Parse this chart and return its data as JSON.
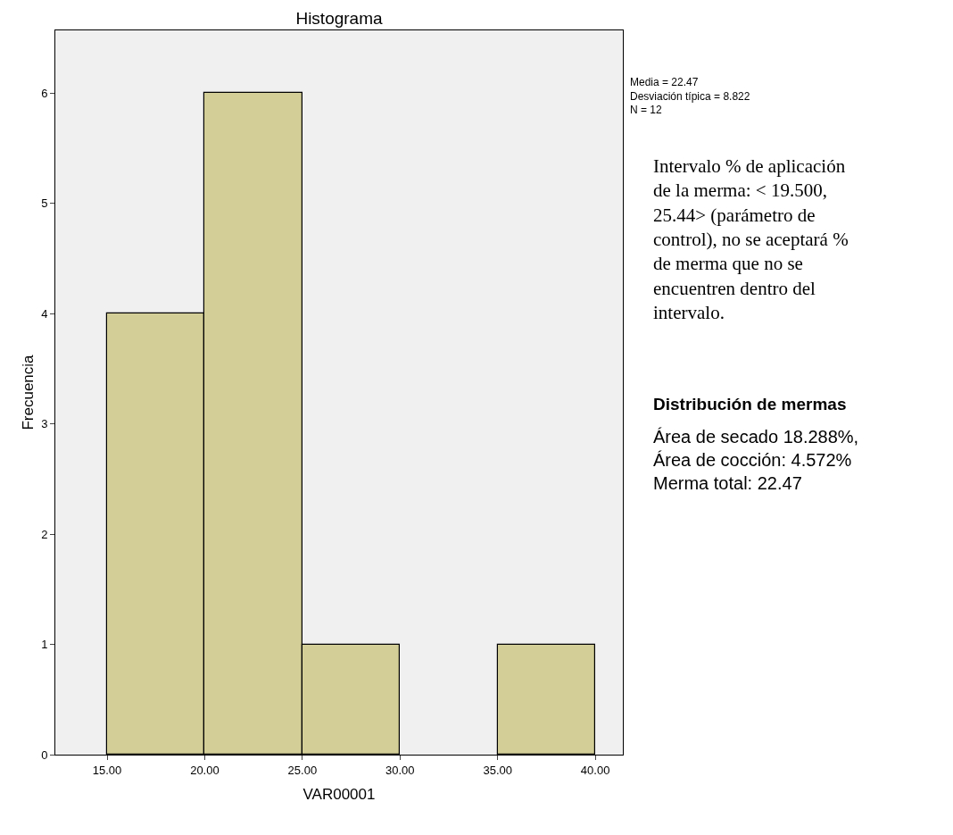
{
  "chart_data": {
    "type": "histogram",
    "title": "Histograma",
    "xlabel": "VAR00001",
    "ylabel": "Frecuencia",
    "bins": [
      15,
      20,
      25,
      30,
      35,
      40
    ],
    "values": [
      4,
      6,
      1,
      0,
      1
    ],
    "color": "#d3ce97",
    "xlim": [
      12.35,
      41.41
    ],
    "ylim": [
      0,
      6.57
    ],
    "xticks": [
      {
        "value": 15,
        "label": "15.00"
      },
      {
        "value": 20,
        "label": "20.00"
      },
      {
        "value": 25,
        "label": "25.00"
      },
      {
        "value": 30,
        "label": "30.00"
      },
      {
        "value": 35,
        "label": "35.00"
      },
      {
        "value": 40,
        "label": "40.00"
      }
    ],
    "yticks": [
      0,
      1,
      2,
      3,
      4,
      5,
      6
    ],
    "grid": false,
    "annotations": [
      "Media = 22.47\nDesviación típica = 8.822\nN = 12",
      "Intervalo % de aplicación\nde la merma: < 19.500,\n25.44> (parámetro de\ncontrol), no se aceptará %\nde merma que no se\nencuentren dentro del\nintervalo.",
      "Distribución de mermas",
      "Área de secado 18.288%,\nÁrea de cocción: 4.572%\nMerma total: 22.47"
    ]
  }
}
